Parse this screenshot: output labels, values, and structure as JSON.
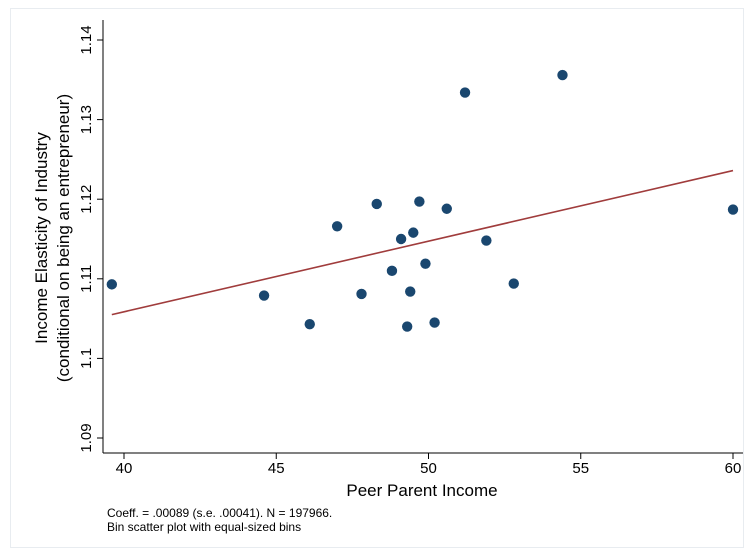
{
  "chart_data": {
    "type": "scatter",
    "xlabel": "Peer Parent Income",
    "ylabel_line1": "Income Elasticity of Industry",
    "ylabel_line2": "(conditional on being an entrepreneur)",
    "xlim": [
      39.5,
      60.5
    ],
    "ylim": [
      1.087,
      1.142
    ],
    "x_ticks": [
      40,
      45,
      50,
      55,
      60
    ],
    "y_ticks": [
      1.09,
      1.1,
      1.11,
      1.12,
      1.13,
      1.14
    ],
    "y_tick_labels": [
      "1.09",
      "1.1",
      "1.11",
      "1.12",
      "1.13",
      "1.14"
    ],
    "grid": false,
    "points": [
      {
        "x": 39.6,
        "y": 1.1093
      },
      {
        "x": 44.6,
        "y": 1.1079
      },
      {
        "x": 46.1,
        "y": 1.1043
      },
      {
        "x": 47.0,
        "y": 1.1166
      },
      {
        "x": 47.8,
        "y": 1.1081
      },
      {
        "x": 48.3,
        "y": 1.1194
      },
      {
        "x": 48.8,
        "y": 1.111
      },
      {
        "x": 49.1,
        "y": 1.115
      },
      {
        "x": 49.3,
        "y": 1.104
      },
      {
        "x": 49.4,
        "y": 1.1084
      },
      {
        "x": 49.5,
        "y": 1.1158
      },
      {
        "x": 49.7,
        "y": 1.1197
      },
      {
        "x": 49.9,
        "y": 1.1119
      },
      {
        "x": 50.2,
        "y": 1.1045
      },
      {
        "x": 50.6,
        "y": 1.1188
      },
      {
        "x": 51.2,
        "y": 1.1334
      },
      {
        "x": 51.9,
        "y": 1.1148
      },
      {
        "x": 52.8,
        "y": 1.1094
      },
      {
        "x": 54.4,
        "y": 1.1356
      },
      {
        "x": 60.0,
        "y": 1.1187
      }
    ],
    "fit_line": {
      "x": [
        39.6,
        60.0
      ],
      "y": [
        1.1055,
        1.1236
      ]
    },
    "point_color": "#1a476f",
    "line_color": "#a03c3c"
  },
  "notes": {
    "line1": "Coeff. = .00089 (s.e. .00041). N = 197966.",
    "line2": "Bin scatter plot with equal-sized bins"
  }
}
